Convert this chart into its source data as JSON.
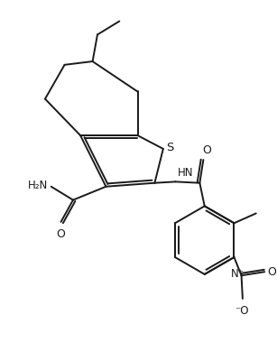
{
  "background_color": "#ffffff",
  "line_color": "#1a1a1a",
  "line_width": 1.4,
  "font_size": 8.5,
  "figsize": [
    3.07,
    4.0
  ],
  "dpi": 100,
  "xlim": [
    -0.5,
    10.5
  ],
  "ylim": [
    -6.5,
    7.0
  ]
}
